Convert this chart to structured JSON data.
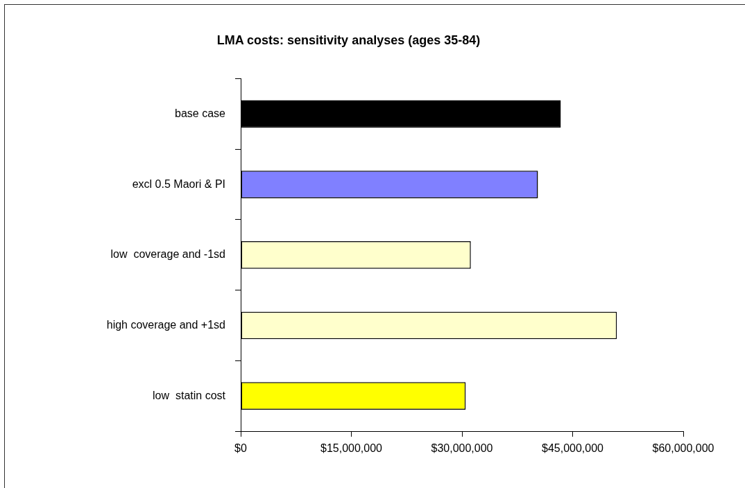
{
  "chart_data": {
    "type": "bar",
    "orientation": "horizontal",
    "title": "LMA costs: sensitivity analyses (ages 35-84)",
    "categories": [
      "base case",
      "excl 0.5 Maori & PI",
      "low  coverage and -1sd",
      "high coverage and +1sd",
      "low  statin cost"
    ],
    "values": [
      43400000,
      40300000,
      31200000,
      51000000,
      30500000
    ],
    "colors": [
      "#000000",
      "#8080ff",
      "#ffffcc",
      "#ffffcc",
      "#ffff00"
    ],
    "xlim": [
      0,
      60000000
    ],
    "xticks": [
      {
        "value": 0,
        "label": "$0"
      },
      {
        "value": 15000000,
        "label": "$15,000,000"
      },
      {
        "value": 30000000,
        "label": "$30,000,000"
      },
      {
        "value": 45000000,
        "label": "$45,000,000"
      },
      {
        "value": 60000000,
        "label": "$60,000,000"
      }
    ],
    "grid": false,
    "legend": false
  }
}
